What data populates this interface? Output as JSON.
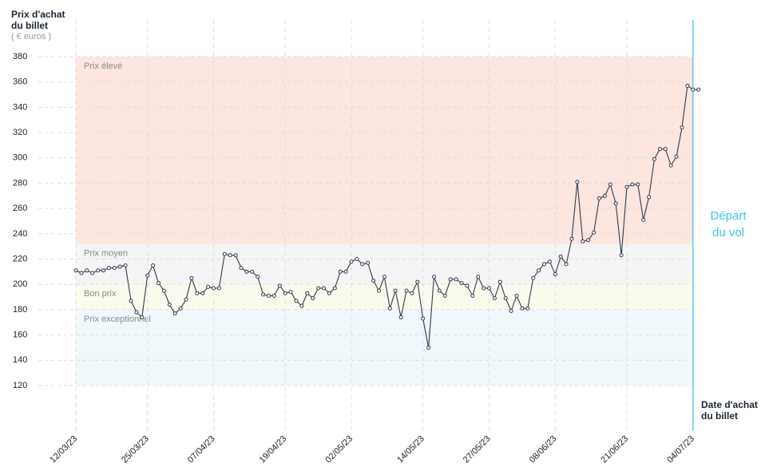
{
  "chart_data": {
    "type": "line",
    "y_label": "Prix d'achat du billet",
    "y_unit": "( € euros )",
    "x_label": "Date d'achat du billet",
    "departure_label": "Départ du vol",
    "categories": [
      "12/03/23",
      null,
      null,
      null,
      null,
      null,
      null,
      null,
      null,
      null,
      null,
      null,
      null,
      "25/03/23",
      null,
      null,
      null,
      null,
      null,
      null,
      null,
      null,
      null,
      null,
      null,
      "07/04/23",
      null,
      null,
      null,
      null,
      null,
      null,
      null,
      null,
      null,
      null,
      null,
      null,
      "19/04/23",
      null,
      null,
      null,
      null,
      null,
      null,
      null,
      null,
      null,
      null,
      null,
      "02/05/23",
      null,
      null,
      null,
      null,
      null,
      null,
      null,
      null,
      null,
      null,
      null,
      null,
      "14/05/23",
      null,
      null,
      null,
      null,
      null,
      null,
      null,
      null,
      null,
      null,
      null,
      "27/05/23",
      null,
      null,
      null,
      null,
      null,
      null,
      null,
      null,
      null,
      null,
      null,
      "08/06/23",
      null,
      null,
      null,
      null,
      null,
      null,
      null,
      null,
      null,
      null,
      null,
      null,
      "21/06/23",
      null,
      null,
      null,
      null,
      null,
      null,
      null,
      null,
      null,
      null,
      null,
      "04/07/23",
      null
    ],
    "series": [
      {
        "color": "#2e3a4f",
        "values": [
          211,
          209,
          211,
          209,
          211,
          211,
          213,
          213,
          214,
          215,
          187,
          178,
          174,
          207,
          215,
          201,
          195,
          184,
          177,
          181,
          188,
          205,
          193,
          193,
          198,
          197,
          197,
          224,
          223,
          223,
          213,
          210,
          210,
          206,
          192,
          191,
          191,
          199,
          193,
          194,
          187,
          183,
          193,
          189,
          197,
          197,
          193,
          197,
          210,
          210,
          218,
          220,
          216,
          217,
          203,
          195,
          206,
          181,
          195,
          174,
          195,
          193,
          202,
          173,
          150,
          206,
          195,
          191,
          204,
          204,
          201,
          199,
          191,
          206,
          197,
          197,
          189,
          202,
          189,
          179,
          191,
          181,
          181,
          205,
          211,
          216,
          218,
          208,
          222,
          216,
          236,
          281,
          234,
          235,
          241,
          268,
          270,
          279,
          264,
          223,
          277,
          279,
          279,
          251,
          269,
          299,
          307,
          307,
          294,
          301,
          324,
          357,
          354,
          354
        ]
      }
    ],
    "bands": [
      {
        "name": "Prix élevé",
        "range": [
          232,
          380
        ],
        "color": "#fde6df"
      },
      {
        "name": "Prix moyen",
        "range": [
          200,
          232
        ],
        "color": "#f5f5f5"
      },
      {
        "name": "Bon prix",
        "range": [
          180,
          200
        ],
        "color": "#fafaed"
      },
      {
        "name": "Prix exceptionnel",
        "range": [
          120,
          180
        ],
        "color": "#f1f8fc"
      }
    ],
    "ylim": [
      100,
      380
    ],
    "yticks": [
      120,
      140,
      160,
      180,
      200,
      220,
      240,
      260,
      280,
      300,
      320,
      340,
      360,
      380
    ],
    "grid": true,
    "departure_color": "#3cc6e0"
  }
}
